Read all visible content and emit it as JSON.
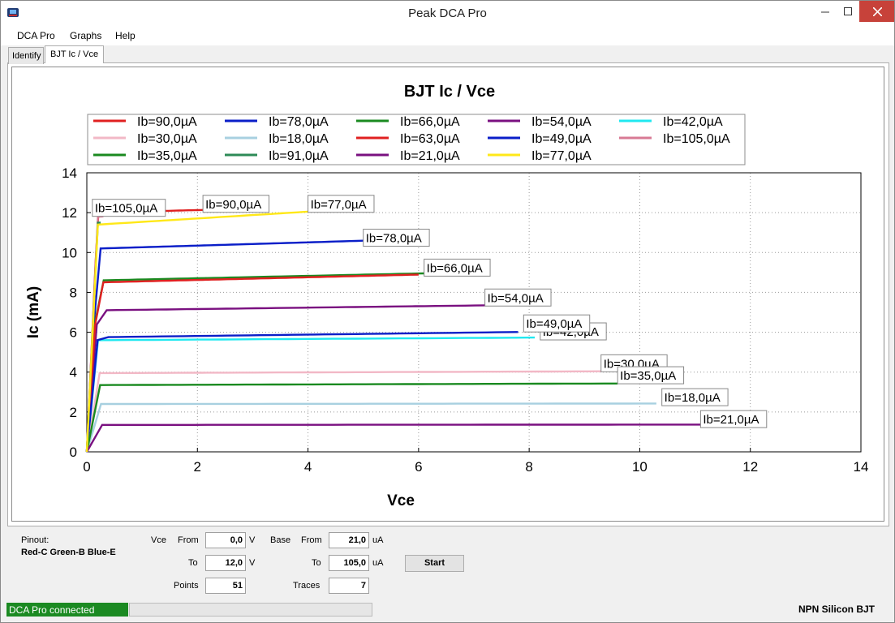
{
  "window": {
    "title": "Peak DCA Pro"
  },
  "menu": [
    "DCA Pro",
    "Graphs",
    "Help"
  ],
  "tabs": [
    "Identify",
    "BJT Ic / Vce"
  ],
  "controls": {
    "pinout_label": "Pinout:",
    "pinout_value": "Red-C Green-B Blue-E",
    "vce_label": "Vce",
    "base_label": "Base",
    "from_label": "From",
    "to_label": "To",
    "points_label": "Points",
    "traces_label": "Traces",
    "vce_from": "0,0",
    "vce_to": "12,0",
    "vce_unit": "V",
    "base_from": "21,0",
    "base_to": "105,0",
    "base_unit": "uA",
    "points": "51",
    "traces": "7",
    "start_label": "Start"
  },
  "status": {
    "connection": "DCA Pro connected",
    "device": "NPN Silicon BJT",
    "connection_color": "#1b8a22"
  },
  "chart_data": {
    "type": "line",
    "title": "BJT Ic / Vce",
    "xlabel": "Vce",
    "ylabel": "Ic (mA)",
    "xlim": [
      0,
      14
    ],
    "ylim": [
      0,
      14
    ],
    "xticks": [
      0,
      2,
      4,
      6,
      8,
      10,
      12,
      14
    ],
    "yticks": [
      0,
      2,
      4,
      6,
      8,
      10,
      12,
      14
    ],
    "grid": true,
    "legend_position": "top",
    "series": [
      {
        "name": "Ib=90,0µA",
        "color": "#e02020",
        "end_x": 2.1,
        "sat": 12.0,
        "slope": 0.06,
        "label": "Ib=90,0µA",
        "label_at": [
          2.1,
          12.3
        ]
      },
      {
        "name": "Ib=78,0µA",
        "color": "#0a1ec8",
        "end_x": 5.0,
        "sat": 10.2,
        "slope": 0.08,
        "label": "Ib=78,0µA",
        "label_at": [
          5.0,
          10.6
        ]
      },
      {
        "name": "Ib=66,0µA",
        "color": "#1a8a20",
        "end_x": 6.1,
        "sat": 8.6,
        "slope": 0.07,
        "label": "Ib=66,0µA",
        "label_at": [
          6.1,
          9.1
        ]
      },
      {
        "name": "Ib=54,0µA",
        "color": "#7a1080",
        "end_x": 7.2,
        "sat": 7.1,
        "slope": 0.05,
        "label": "Ib=54,0µA",
        "label_at": [
          7.2,
          7.6
        ]
      },
      {
        "name": "Ib=42,0µA",
        "color": "#20e8f0",
        "end_x": 8.1,
        "sat": 5.6,
        "slope": 0.03,
        "label": "Ib=42,0µA",
        "label_at": [
          8.2,
          5.9
        ]
      },
      {
        "name": "Ib=30,0µA",
        "color": "#f2b8c6",
        "end_x": 9.3,
        "sat": 3.95,
        "slope": 0.025,
        "label": "Ib=30,0µA",
        "label_at": [
          9.3,
          4.3
        ]
      },
      {
        "name": "Ib=18,0µA",
        "color": "#a8d0e0",
        "end_x": 10.3,
        "sat": 2.4,
        "slope": 0.01,
        "label": "Ib=18,0µA",
        "label_at": [
          10.4,
          2.6
        ]
      },
      {
        "name": "Ib=63,0µA",
        "color": "#e02020",
        "end_x": 6.0,
        "sat": 8.5,
        "slope": 0.08,
        "label": "",
        "label_at": null
      },
      {
        "name": "Ib=49,0µA",
        "color": "#0a1ec8",
        "end_x": 7.8,
        "sat": 5.75,
        "slope": 0.06,
        "label": "Ib=49,0µA",
        "label_at": [
          7.9,
          6.3
        ]
      },
      {
        "name": "Ib=105,0µA",
        "color": "#d87a94",
        "end_x": 0.3,
        "sat": 11.8,
        "slope": 0.1,
        "label": "Ib=105,0µA",
        "label_at": [
          0.1,
          12.1
        ]
      },
      {
        "name": "Ib=35,0µA",
        "color": "#1a8a20",
        "end_x": 9.6,
        "sat": 3.35,
        "slope": 0.025,
        "label": "Ib=35,0µA",
        "label_at": [
          9.6,
          3.7
        ]
      },
      {
        "name": "Ib=91,0µA",
        "color": "#2e8b57",
        "end_x": 0.25,
        "sat": 11.5,
        "slope": 0.05,
        "label": "",
        "label_at": null
      },
      {
        "name": "Ib=21,0µA",
        "color": "#7a1080",
        "end_x": 11.1,
        "sat": 1.35,
        "slope": 0.012,
        "label": "Ib=21,0µA",
        "label_at": [
          11.1,
          1.5
        ]
      },
      {
        "name": "Ib=77,0µA",
        "color": "#ffe818",
        "end_x": 4.0,
        "sat": 11.4,
        "slope": 0.15,
        "label": "Ib=77,0µA",
        "label_at": [
          4.0,
          12.3
        ]
      }
    ]
  }
}
